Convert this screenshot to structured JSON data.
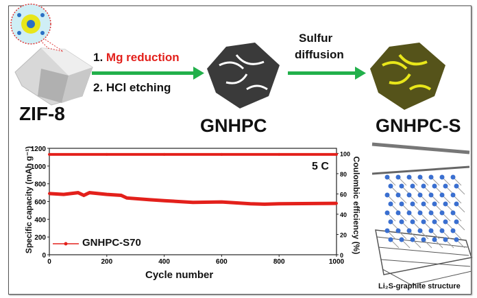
{
  "scheme": {
    "precursor_label": "ZIF-8",
    "step1_prefix": "1. ",
    "step1_text": "Mg reduction",
    "step2_text": "2. HCl etching",
    "intermediate_label": "GNHPC",
    "step3_line1": "Sulfur",
    "step3_line2": "diffusion",
    "product_label": "GNHPC-S",
    "structure_caption": "Li₂S-graphite structure",
    "colors": {
      "arrow": "#22b04b",
      "highlight": "#e3201b",
      "sulfur": "#e8e61a"
    }
  },
  "chart_data": {
    "type": "line",
    "xlabel": "Cycle number",
    "ylabel": "Specific capacity (mAh g⁻¹)",
    "y2label": "Coulombic efficiency (%)",
    "annotation": "5 C",
    "xlim": [
      0,
      1000
    ],
    "ylim": [
      0,
      1200
    ],
    "y2lim": [
      0,
      105
    ],
    "xticks": [
      "0",
      "200",
      "400",
      "600",
      "800",
      "1000"
    ],
    "yticks": [
      "0",
      "200",
      "400",
      "600",
      "800",
      "1000",
      "1200"
    ],
    "y2ticks": [
      "0",
      "20",
      "40",
      "60",
      "80",
      "100"
    ],
    "legend": {
      "label": "GNHPC-S70",
      "placement": "bottom-left"
    },
    "series": [
      {
        "name": "GNHPC-S70 capacity",
        "axis": "left",
        "color": "#e3201b",
        "x": [
          0,
          50,
          100,
          120,
          140,
          200,
          250,
          270,
          350,
          400,
          500,
          600,
          700,
          750,
          800,
          1000
        ],
        "y": [
          690,
          680,
          700,
          670,
          700,
          680,
          670,
          640,
          620,
          610,
          590,
          595,
          575,
          570,
          575,
          580
        ]
      },
      {
        "name": "Coulombic efficiency",
        "axis": "right",
        "color": "#e3201b",
        "x": [
          0,
          200,
          400,
          600,
          800,
          1000
        ],
        "y": [
          99,
          99,
          99,
          99,
          99,
          99
        ]
      }
    ]
  }
}
